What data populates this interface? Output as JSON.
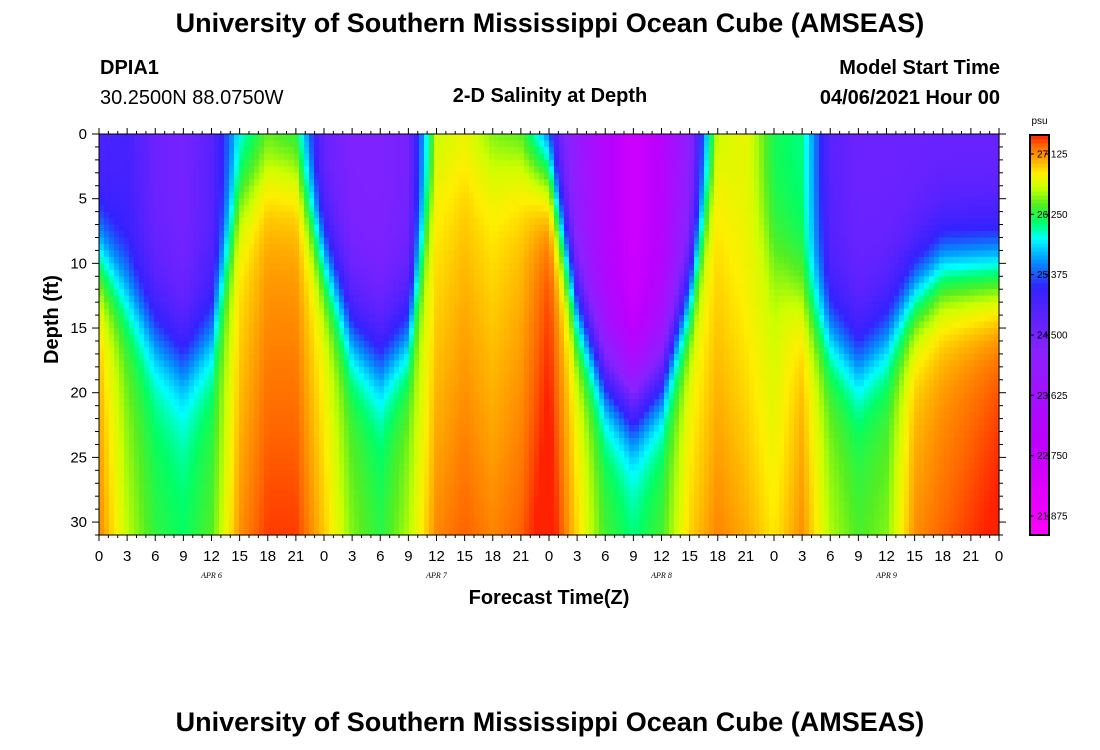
{
  "page": {
    "title_top": "University of Southern Mississippi Ocean Cube (AMSEAS)",
    "title_bottom": "University of Southern Mississippi Ocean Cube (AMSEAS)",
    "station": "DPIA1",
    "coords": "30.2500N  88.0750W",
    "subtitle": "2-D Salinity at Depth",
    "model_start_label": "Model Start Time",
    "model_start_value": "04/06/2021 Hour 00"
  },
  "chart_data": {
    "type": "heatmap",
    "title": "2-D Salinity at Depth",
    "xlabel": "Forecast Time(Z)",
    "ylabel": "Depth (ft)",
    "x_range_hours": [
      0,
      96
    ],
    "y_range_ft": [
      0,
      31
    ],
    "x_tick_labels": [
      "0",
      "3",
      "6",
      "9",
      "12",
      "15",
      "18",
      "21",
      "0",
      "3",
      "6",
      "9",
      "12",
      "15",
      "18",
      "21",
      "0",
      "3",
      "6",
      "9",
      "12",
      "15",
      "18",
      "21",
      "0",
      "3",
      "6",
      "9",
      "12",
      "15",
      "18",
      "21",
      "0"
    ],
    "day_labels": [
      {
        "text": "APR 6",
        "hour": 12
      },
      {
        "text": "APR 7",
        "hour": 36
      },
      {
        "text": "APR 8",
        "hour": 60
      },
      {
        "text": "APR 9",
        "hour": 84
      }
    ],
    "y_tick_labels": [
      "0",
      "5",
      "10",
      "15",
      "20",
      "25",
      "30"
    ],
    "y_tick_values": [
      0,
      5,
      10,
      15,
      20,
      25,
      30
    ],
    "colorbar": {
      "unit": "psu",
      "range": [
        21.6,
        27.4
      ],
      "labels": [
        "27.125",
        "26.250",
        "25.375",
        "24.500",
        "23.625",
        "22.750",
        "21.875"
      ],
      "label_values": [
        27.125,
        26.25,
        25.375,
        24.5,
        23.625,
        22.75,
        21.875
      ],
      "color_stops": [
        {
          "v": 21.6,
          "color": "#ff00ff"
        },
        {
          "v": 23.0,
          "color": "#bb00ff"
        },
        {
          "v": 24.3,
          "color": "#8822ff"
        },
        {
          "v": 25.2,
          "color": "#3322ff"
        },
        {
          "v": 25.6,
          "color": "#0099ff"
        },
        {
          "v": 25.9,
          "color": "#00ffff"
        },
        {
          "v": 26.15,
          "color": "#00ff66"
        },
        {
          "v": 26.4,
          "color": "#55ee22"
        },
        {
          "v": 26.65,
          "color": "#ccff00"
        },
        {
          "v": 26.85,
          "color": "#ffee00"
        },
        {
          "v": 27.05,
          "color": "#ffaa00"
        },
        {
          "v": 27.25,
          "color": "#ff6600"
        },
        {
          "v": 27.4,
          "color": "#ff2200"
        }
      ]
    },
    "salinity_profile": {
      "description": "Estimated surface and bottom salinity (psu) plus halocline depth (ft) sampled every 3 forecast hours",
      "hours": [
        0,
        3,
        6,
        9,
        12,
        15,
        18,
        21,
        24,
        27,
        30,
        33,
        36,
        39,
        42,
        45,
        48,
        51,
        54,
        57,
        60,
        63,
        66,
        69,
        72,
        75,
        78,
        81,
        84,
        87,
        90,
        93,
        96
      ],
      "surface_psu": [
        24.9,
        25.0,
        24.6,
        24.5,
        24.8,
        25.8,
        26.2,
        26.0,
        24.6,
        24.4,
        24.4,
        24.5,
        26.6,
        26.7,
        26.3,
        26.1,
        24.8,
        24.0,
        23.2,
        22.6,
        23.1,
        24.2,
        26.6,
        26.8,
        26.2,
        26.1,
        24.8,
        24.6,
        24.6,
        24.6,
        24.6,
        24.6,
        24.6
      ],
      "bottom_psu": [
        26.9,
        26.4,
        26.1,
        26.0,
        26.2,
        26.8,
        27.0,
        27.0,
        26.7,
        26.3,
        26.1,
        26.4,
        26.8,
        26.9,
        26.8,
        26.9,
        27.2,
        26.7,
        26.2,
        26.0,
        26.2,
        26.7,
        26.8,
        26.7,
        26.6,
        26.9,
        26.4,
        26.2,
        26.3,
        26.9,
        27.0,
        27.1,
        27.2
      ],
      "cline_ft": [
        9,
        12,
        15,
        17,
        15,
        4,
        2,
        2,
        9,
        15,
        17,
        15,
        2,
        1,
        1,
        1,
        2,
        13,
        18,
        20,
        18,
        12,
        1,
        2,
        9,
        12,
        15,
        17,
        15,
        12,
        10,
        10,
        10
      ]
    }
  }
}
